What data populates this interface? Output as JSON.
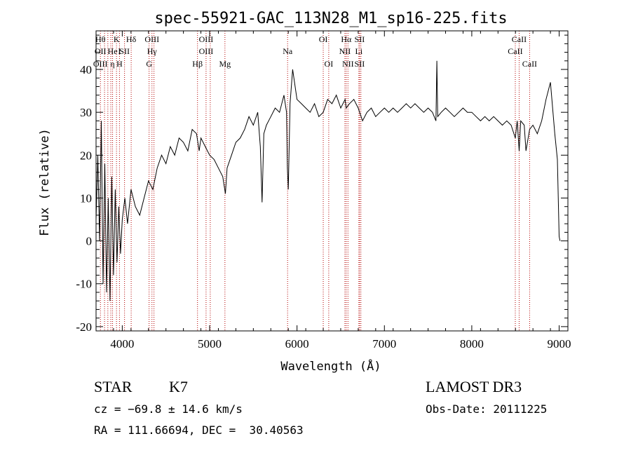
{
  "chart_data": {
    "type": "line",
    "title": "spec-55921-GAC_113N28_M1_sp16-225.fits",
    "xlabel": "Wavelength (Å)",
    "ylabel": "Flux (relative)",
    "xlim": [
      3700,
      9100
    ],
    "ylim": [
      -21,
      49
    ],
    "xticks": [
      4000,
      5000,
      6000,
      7000,
      8000,
      9000
    ],
    "yticks": [
      -20,
      -10,
      0,
      10,
      20,
      30,
      40
    ],
    "series": [
      {
        "name": "flux",
        "x": [
          3700,
          3720,
          3740,
          3760,
          3780,
          3800,
          3820,
          3840,
          3860,
          3880,
          3900,
          3920,
          3940,
          3960,
          3980,
          4000,
          4030,
          4060,
          4100,
          4150,
          4200,
          4250,
          4300,
          4350,
          4400,
          4450,
          4500,
          4550,
          4600,
          4650,
          4700,
          4750,
          4800,
          4850,
          4880,
          4900,
          4950,
          5000,
          5050,
          5100,
          5150,
          5180,
          5200,
          5250,
          5300,
          5350,
          5400,
          5450,
          5500,
          5550,
          5580,
          5600,
          5620,
          5650,
          5700,
          5750,
          5800,
          5850,
          5880,
          5890,
          5900,
          5920,
          5950,
          6000,
          6050,
          6100,
          6150,
          6200,
          6250,
          6300,
          6350,
          6400,
          6450,
          6500,
          6550,
          6563,
          6600,
          6650,
          6700,
          6750,
          6800,
          6850,
          6900,
          6950,
          7000,
          7050,
          7100,
          7150,
          7200,
          7250,
          7300,
          7350,
          7400,
          7450,
          7500,
          7550,
          7590,
          7600,
          7610,
          7650,
          7700,
          7750,
          7800,
          7850,
          7900,
          7950,
          8000,
          8050,
          8100,
          8150,
          8200,
          8250,
          8300,
          8350,
          8400,
          8450,
          8498,
          8520,
          8542,
          8560,
          8600,
          8620,
          8662,
          8700,
          8750,
          8800,
          8850,
          8900,
          8950,
          8980,
          9000,
          9010
        ],
        "values": [
          5,
          20,
          0,
          28,
          -10,
          18,
          -12,
          10,
          -14,
          15,
          -8,
          12,
          -5,
          8,
          -3,
          5,
          10,
          4,
          12,
          8,
          6,
          10,
          14,
          12,
          17,
          20,
          18,
          22,
          20,
          24,
          23,
          21,
          26,
          25,
          21,
          24,
          22,
          20,
          19,
          17,
          15,
          11,
          17,
          20,
          23,
          24,
          26,
          29,
          27,
          30,
          22,
          9,
          25,
          27,
          29,
          31,
          30,
          34,
          30,
          17,
          12,
          32,
          40,
          33,
          32,
          31,
          30,
          32,
          29,
          30,
          33,
          32,
          34,
          31,
          33,
          31,
          32,
          33,
          31,
          28,
          30,
          31,
          29,
          30,
          31,
          30,
          31,
          30,
          31,
          32,
          31,
          32,
          31,
          30,
          31,
          30,
          28,
          42,
          29,
          30,
          31,
          30,
          29,
          30,
          31,
          30,
          30,
          29,
          28,
          29,
          28,
          29,
          28,
          27,
          28,
          27,
          24,
          28,
          21,
          28,
          27,
          21,
          26,
          27,
          25,
          28,
          33,
          37,
          25,
          19,
          1,
          0
        ]
      }
    ],
    "annotations": [
      {
        "wavelength": 3750,
        "lines": [
          "Hθ",
          "OII",
          "OIII"
        ]
      },
      {
        "wavelength": 3797,
        "lines": [
          "",
          "",
          ""
        ]
      },
      {
        "wavelength": 3835,
        "lines": [
          "",
          "",
          ""
        ]
      },
      {
        "wavelength": 3869,
        "lines": [
          "",
          "",
          ""
        ]
      },
      {
        "wavelength": 3889,
        "lines": [
          "",
          "He",
          "η"
        ]
      },
      {
        "wavelength": 3934,
        "lines": [
          "K",
          "",
          ""
        ]
      },
      {
        "wavelength": 3968,
        "lines": [
          "",
          "I",
          "H"
        ]
      },
      {
        "wavelength": 4026,
        "lines": [
          "",
          "SII",
          ""
        ]
      },
      {
        "wavelength": 4102,
        "lines": [
          "Hδ",
          "",
          ""
        ]
      },
      {
        "wavelength": 4307,
        "lines": [
          "",
          "",
          "G"
        ]
      },
      {
        "wavelength": 4340,
        "lines": [
          "OIII",
          "Hγ",
          ""
        ]
      },
      {
        "wavelength": 4363,
        "lines": [
          "",
          "",
          ""
        ]
      },
      {
        "wavelength": 4861,
        "lines": [
          "",
          "",
          "Hβ"
        ]
      },
      {
        "wavelength": 4959,
        "lines": [
          "OIII",
          "OIII",
          ""
        ]
      },
      {
        "wavelength": 5007,
        "lines": [
          "",
          "",
          ""
        ]
      },
      {
        "wavelength": 5175,
        "lines": [
          "",
          "",
          "Mg"
        ]
      },
      {
        "wavelength": 5892,
        "lines": [
          "",
          "Na",
          ""
        ]
      },
      {
        "wavelength": 6300,
        "lines": [
          "OI",
          "",
          ""
        ]
      },
      {
        "wavelength": 6363,
        "lines": [
          "",
          "",
          "OI"
        ]
      },
      {
        "wavelength": 6548,
        "lines": [
          "",
          "NII",
          ""
        ]
      },
      {
        "wavelength": 6563,
        "lines": [
          "Hα",
          "",
          ""
        ]
      },
      {
        "wavelength": 6583,
        "lines": [
          "",
          "",
          "NII"
        ]
      },
      {
        "wavelength": 6708,
        "lines": [
          "",
          "Li",
          ""
        ]
      },
      {
        "wavelength": 6716,
        "lines": [
          "SII",
          "",
          "SII"
        ]
      },
      {
        "wavelength": 6731,
        "lines": [
          "",
          "",
          ""
        ]
      },
      {
        "wavelength": 8498,
        "lines": [
          "",
          "CaII",
          ""
        ]
      },
      {
        "wavelength": 8542,
        "lines": [
          "CaII",
          "",
          ""
        ]
      },
      {
        "wavelength": 8662,
        "lines": [
          "",
          "",
          "CaII"
        ]
      }
    ]
  },
  "info": {
    "object_class": "STAR",
    "subclass": "K7",
    "cz": "cz = −69.8 ± 14.6 km/s",
    "coords": "RA = 111.66694, DEC =  30.40563",
    "survey": "LAMOST DR3",
    "obs_date": "Obs-Date: 20111225"
  },
  "colors": {
    "line": "#000000",
    "marker": "#b30000",
    "background": "#ffffff"
  }
}
